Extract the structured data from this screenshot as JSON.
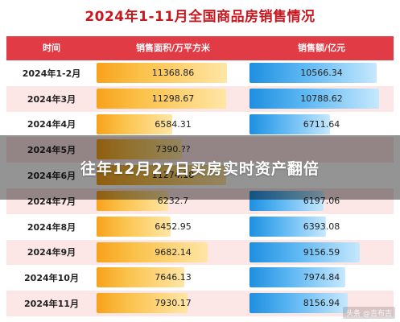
{
  "title": "2024年1-11月全国商品房销售情况",
  "overlay_headline": "往年12月27日买房实时资产翻倍",
  "watermark": "头条 @吉布吉",
  "colors": {
    "title": "#c8171e",
    "header_bg": "#e13b45",
    "row_alt_bg": "#fde6e6",
    "area_bar": "#f7a21b",
    "sales_bar": "#1e8fe0"
  },
  "table": {
    "headers": {
      "time": "时间",
      "area": "销售面积/万平方米",
      "sales": "销售额/亿元"
    },
    "rows": [
      {
        "time": "2024年1-2月",
        "area": "11368.86",
        "sales": "10566.34"
      },
      {
        "time": "2024年3月",
        "area": "11298.67",
        "sales": "10788.62"
      },
      {
        "time": "2024年4月",
        "area": "6584.31",
        "sales": "6711.64"
      },
      {
        "time": "2024年5月",
        "area": "7390.??",
        "sales": ""
      },
      {
        "time": "2024年6月",
        "area": "11274.18",
        "sales": ""
      },
      {
        "time": "2024年7月",
        "area": "6232.7",
        "sales": "6197.06"
      },
      {
        "time": "2024年8月",
        "area": "6452.95",
        "sales": "6393.08"
      },
      {
        "time": "2024年9月",
        "area": "9682.14",
        "sales": "9156.59"
      },
      {
        "time": "2024年10月",
        "area": "7646.13",
        "sales": "7974.84"
      },
      {
        "time": "2024年11月",
        "area": "7930.17",
        "sales": "8156.94"
      }
    ]
  }
}
